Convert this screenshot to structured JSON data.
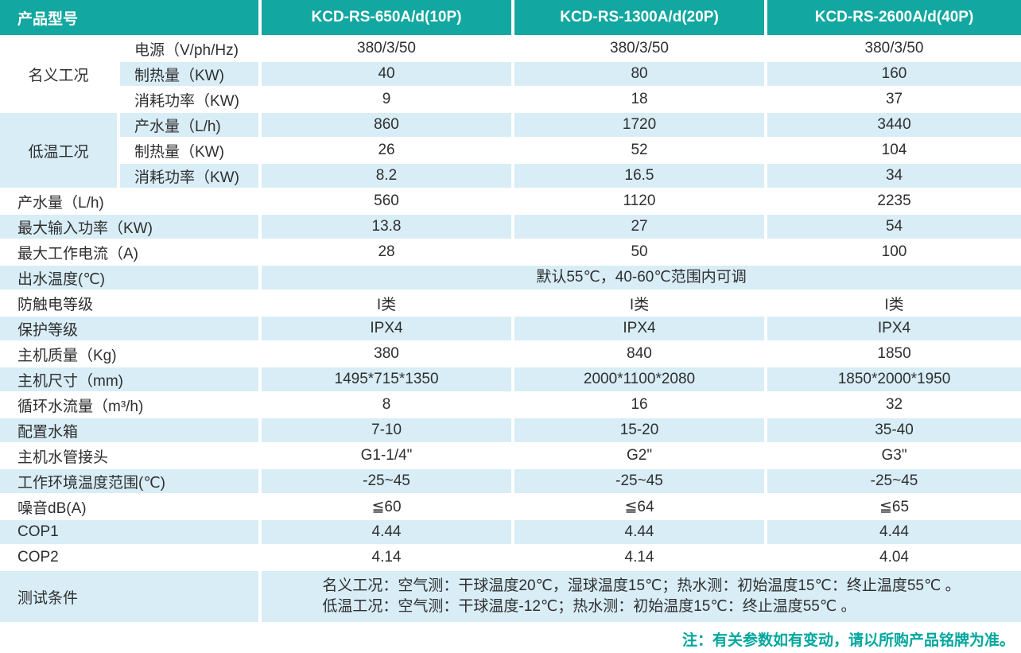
{
  "colors": {
    "header_bg": "#12a7a0",
    "row_alt_bg": "#d8edf6",
    "text": "#2f2f2f",
    "note": "#00a79e"
  },
  "header": {
    "label": "产品型号",
    "models": [
      "KCD-RS-650A/d(10P)",
      "KCD-RS-1300A/d(20P)",
      "KCD-RS-2600A/d(40P)"
    ]
  },
  "rows": [
    {
      "kind": "group-start",
      "group": "名义工况",
      "group_span": 3,
      "group_shade": false,
      "label": "电源（V/ph/Hz)",
      "shade": false,
      "values": [
        "380/3/50",
        "380/3/50",
        "380/3/50"
      ]
    },
    {
      "kind": "group-mid",
      "label": "制热量（KW)",
      "shade": true,
      "values": [
        "40",
        "80",
        "160"
      ]
    },
    {
      "kind": "group-mid",
      "label": "消耗功率（KW)",
      "shade": false,
      "values": [
        "9",
        "18",
        "37"
      ]
    },
    {
      "kind": "group-start",
      "group": "低温工况",
      "group_span": 3,
      "group_shade": true,
      "label": "产水量（L/h)",
      "shade": true,
      "values": [
        "860",
        "1720",
        "3440"
      ]
    },
    {
      "kind": "group-mid",
      "label": "制热量（KW)",
      "shade": false,
      "values": [
        "26",
        "52",
        "104"
      ]
    },
    {
      "kind": "group-mid",
      "label": "消耗功率（KW)",
      "shade": true,
      "values": [
        "8.2",
        "16.5",
        "34"
      ]
    },
    {
      "kind": "plain",
      "label": "产水量（L/h)",
      "shade": false,
      "values": [
        "560",
        "1120",
        "2235"
      ]
    },
    {
      "kind": "plain",
      "label": "最大输入功率（KW)",
      "shade": true,
      "values": [
        "13.8",
        "27",
        "54"
      ]
    },
    {
      "kind": "plain",
      "label": "最大工作电流（A)",
      "shade": false,
      "values": [
        "28",
        "50",
        "100"
      ]
    },
    {
      "kind": "merged",
      "label": "出水温度(℃)",
      "shade": true,
      "merged_lines": [
        "默认55℃，40-60℃范围内可调"
      ]
    },
    {
      "kind": "plain",
      "label": "防触电等级",
      "shade": false,
      "values": [
        "I类",
        "I类",
        "I类"
      ]
    },
    {
      "kind": "plain",
      "label": "保护等级",
      "shade": true,
      "values": [
        "IPX4",
        "IPX4",
        "IPX4"
      ]
    },
    {
      "kind": "plain",
      "label": "主机质量（Kg)",
      "shade": false,
      "values": [
        "380",
        "840",
        "1850"
      ]
    },
    {
      "kind": "plain",
      "label": "主机尺寸（mm)",
      "shade": true,
      "values": [
        "1495*715*1350",
        "2000*1100*2080",
        "1850*2000*1950"
      ]
    },
    {
      "kind": "plain",
      "label": "循环水流量（m³/h)",
      "shade": false,
      "values": [
        "8",
        "16",
        "32"
      ]
    },
    {
      "kind": "plain",
      "label": "配置水箱",
      "shade": true,
      "values": [
        "7-10",
        "15-20",
        "35-40"
      ]
    },
    {
      "kind": "plain",
      "label": "主机水管接头",
      "shade": false,
      "values": [
        "G1-1/4\"",
        "G2\"",
        "G3\""
      ]
    },
    {
      "kind": "plain",
      "label": "工作环境温度范围(℃)",
      "shade": true,
      "values": [
        "-25~45",
        "-25~45",
        "-25~45"
      ]
    },
    {
      "kind": "plain",
      "label": "噪音dB(A)",
      "shade": false,
      "values": [
        "≦60",
        "≦64",
        "≦65"
      ]
    },
    {
      "kind": "plain",
      "label": "COP1",
      "shade": true,
      "values": [
        "4.44",
        "4.44",
        "4.44"
      ]
    },
    {
      "kind": "plain",
      "label": "COP2",
      "shade": false,
      "values": [
        "4.14",
        "4.14",
        "4.04"
      ]
    },
    {
      "kind": "merged",
      "label": "测试条件",
      "shade": true,
      "tall": true,
      "merged_lines": [
        "名义工况：空气测：干球温度20℃，湿球温度15℃；热水测：初始温度15℃：终止温度55℃ 。",
        "低温工况：空气测：干球温度-12℃；热水测：初始温度15℃：终止温度55℃ 。"
      ]
    }
  ],
  "note": "注：有关参数如有变动，请以所购产品铭牌为准。"
}
